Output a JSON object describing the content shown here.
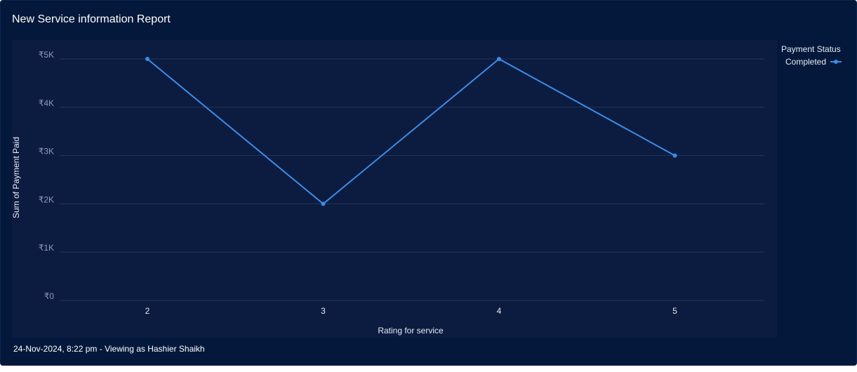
{
  "report": {
    "title": "New Service information Report",
    "footer": "24-Nov-2024, 8:22 pm - Viewing as Hashier Shaikh"
  },
  "legend": {
    "title": "Payment Status",
    "items": [
      {
        "label": "Completed",
        "color": "#3a8de6"
      }
    ]
  },
  "chart_data": {
    "type": "line",
    "xlabel": "Rating for service",
    "ylabel": "Sum of Payment Paid",
    "categories": [
      "2",
      "3",
      "4",
      "5"
    ],
    "series": [
      {
        "name": "Completed",
        "values": [
          5000,
          2000,
          5000,
          3000
        ],
        "color": "#3a8de6"
      }
    ],
    "ylim": [
      0,
      5000
    ],
    "yticks": [
      0,
      1000,
      2000,
      3000,
      4000,
      5000
    ],
    "ytick_labels": [
      "₹0",
      "₹1K",
      "₹2K",
      "₹3K",
      "₹4K",
      "₹5K"
    ],
    "grid": true,
    "legend_position": "top-right"
  }
}
